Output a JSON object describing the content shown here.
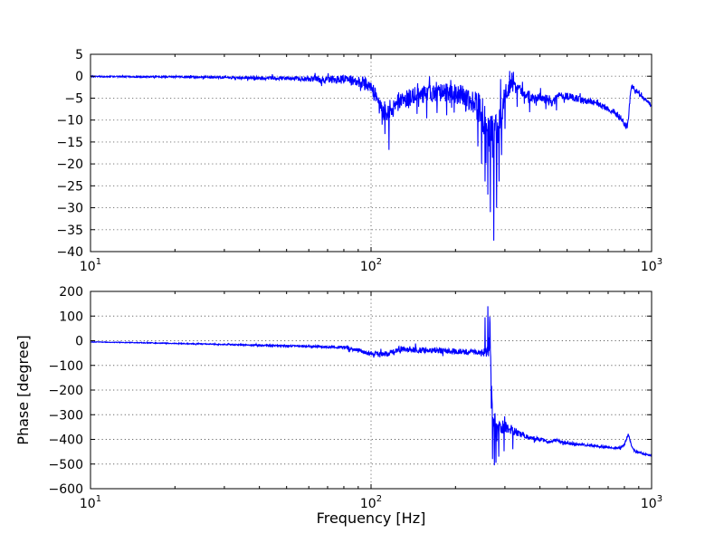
{
  "figure": {
    "background": "#ffffff",
    "accent_color": "#0000ff",
    "grid_color": "#4a4a4a"
  },
  "chart_data": [
    {
      "id": "magnitude",
      "type": "line",
      "title": "",
      "xlabel": "",
      "ylabel": "",
      "xscale": "log",
      "grid": true,
      "legend": null,
      "line_color": "#0000ff",
      "xlim": [
        10,
        1000
      ],
      "ylim": [
        -40,
        5
      ],
      "yticks": [
        5,
        0,
        -5,
        -10,
        -15,
        -20,
        -25,
        -30,
        -35,
        -40
      ],
      "xticks": [
        {
          "value": 10,
          "base": "10",
          "exp": "1"
        },
        {
          "value": 100,
          "base": "10",
          "exp": "2"
        },
        {
          "value": 1000,
          "base": "10",
          "exp": "3"
        }
      ],
      "anchors": [
        [
          10,
          -0.05
        ],
        [
          14,
          -0.1
        ],
        [
          20,
          -0.15
        ],
        [
          28,
          -0.25
        ],
        [
          40,
          -0.4
        ],
        [
          55,
          -0.55
        ],
        [
          70,
          -0.7
        ],
        [
          85,
          -0.95
        ],
        [
          95,
          -1.4
        ],
        [
          100,
          -2.3
        ],
        [
          104,
          -4.5
        ],
        [
          108,
          -7
        ],
        [
          113,
          -8
        ],
        [
          118,
          -7.4
        ],
        [
          126,
          -6
        ],
        [
          136,
          -4.8
        ],
        [
          150,
          -4.1
        ],
        [
          170,
          -3.7
        ],
        [
          190,
          -3.9
        ],
        [
          210,
          -4.5
        ],
        [
          228,
          -5.6
        ],
        [
          243,
          -7.5
        ],
        [
          252,
          -9.5
        ],
        [
          258,
          -10.5
        ],
        [
          266,
          -13
        ],
        [
          272,
          -14.5
        ],
        [
          280,
          -12.5
        ],
        [
          288,
          -9.5
        ],
        [
          296,
          -6
        ],
        [
          306,
          -3
        ],
        [
          314,
          -2.2
        ],
        [
          326,
          -2.5
        ],
        [
          342,
          -3.3
        ],
        [
          362,
          -4.3
        ],
        [
          385,
          -5
        ],
        [
          405,
          -4.9
        ],
        [
          425,
          -5.2
        ],
        [
          440,
          -6.2
        ],
        [
          455,
          -5.2
        ],
        [
          470,
          -4.4
        ],
        [
          495,
          -4.5
        ],
        [
          520,
          -4.9
        ],
        [
          555,
          -5.3
        ],
        [
          600,
          -5.8
        ],
        [
          640,
          -6.1
        ],
        [
          690,
          -7.3
        ],
        [
          730,
          -8
        ],
        [
          760,
          -9
        ],
        [
          785,
          -10
        ],
        [
          800,
          -10.8
        ],
        [
          812,
          -11.6
        ],
        [
          820,
          -11.3
        ],
        [
          830,
          -8.5
        ],
        [
          842,
          -3.5
        ],
        [
          852,
          -2.1
        ],
        [
          862,
          -2.7
        ],
        [
          880,
          -3.3
        ],
        [
          905,
          -4.1
        ],
        [
          950,
          -5.3
        ],
        [
          1000,
          -6.7
        ]
      ],
      "noise_envelope": [
        [
          10,
          0.12
        ],
        [
          30,
          0.25
        ],
        [
          50,
          0.45
        ],
        [
          70,
          0.8
        ],
        [
          90,
          1.3
        ],
        [
          100,
          1.8
        ],
        [
          112,
          2.4
        ],
        [
          130,
          2.0
        ],
        [
          160,
          2.2
        ],
        [
          200,
          2.3
        ],
        [
          235,
          3.0
        ],
        [
          255,
          4.5
        ],
        [
          272,
          5.5
        ],
        [
          285,
          4.0
        ],
        [
          300,
          2.5
        ],
        [
          315,
          1.6
        ],
        [
          350,
          1.2
        ],
        [
          400,
          1.0
        ],
        [
          460,
          1.0
        ],
        [
          520,
          0.85
        ],
        [
          600,
          0.7
        ],
        [
          700,
          0.6
        ],
        [
          760,
          0.8
        ],
        [
          800,
          0.7
        ],
        [
          840,
          0.6
        ],
        [
          900,
          0.45
        ],
        [
          1000,
          0.4
        ]
      ],
      "spikes": [
        [
          112,
          -13.2
        ],
        [
          116,
          -16.8
        ],
        [
          146,
          -8.6
        ],
        [
          158,
          -9.6
        ],
        [
          172,
          -8.4
        ],
        [
          186,
          -8.9
        ],
        [
          198,
          -8.3
        ],
        [
          240,
          -16
        ],
        [
          248,
          -20
        ],
        [
          255,
          -24
        ],
        [
          261,
          -27
        ],
        [
          266,
          -31
        ],
        [
          274,
          -37.5
        ],
        [
          280,
          -30
        ],
        [
          286,
          -24
        ],
        [
          292,
          -18
        ],
        [
          300,
          -12
        ],
        [
          312,
          1.2
        ],
        [
          318,
          0.8
        ],
        [
          322,
          1.0
        ],
        [
          332,
          -7
        ],
        [
          368,
          -8.2
        ],
        [
          420,
          -7.5
        ],
        [
          458,
          -7.8
        ]
      ]
    },
    {
      "id": "phase",
      "type": "line",
      "title": "",
      "xlabel": "Frequency [Hz]",
      "ylabel": "Phase [degree]",
      "xscale": "log",
      "grid": true,
      "legend": null,
      "line_color": "#0000ff",
      "xlim": [
        10,
        1000
      ],
      "ylim": [
        -600,
        200
      ],
      "yticks": [
        200,
        100,
        0,
        -100,
        -200,
        -300,
        -400,
        -500,
        -600
      ],
      "xticks": [
        {
          "value": 10,
          "base": "10",
          "exp": "1"
        },
        {
          "value": 100,
          "base": "10",
          "exp": "2"
        },
        {
          "value": 1000,
          "base": "10",
          "exp": "3"
        }
      ],
      "anchors": [
        [
          10,
          -5
        ],
        [
          15,
          -8
        ],
        [
          22,
          -12
        ],
        [
          30,
          -15
        ],
        [
          42,
          -19
        ],
        [
          55,
          -22
        ],
        [
          70,
          -25
        ],
        [
          80,
          -27
        ],
        [
          90,
          -38
        ],
        [
          97,
          -48
        ],
        [
          104,
          -54
        ],
        [
          110,
          -58
        ],
        [
          116,
          -50
        ],
        [
          124,
          -37
        ],
        [
          132,
          -33
        ],
        [
          142,
          -36
        ],
        [
          155,
          -39
        ],
        [
          175,
          -40
        ],
        [
          195,
          -42
        ],
        [
          215,
          -45
        ],
        [
          235,
          -48
        ],
        [
          250,
          -50
        ],
        [
          258,
          -48
        ],
        [
          262,
          -30
        ],
        [
          265,
          35
        ],
        [
          267,
          -40
        ],
        [
          269,
          -180
        ],
        [
          272,
          -300
        ],
        [
          277,
          -355
        ],
        [
          283,
          -370
        ],
        [
          290,
          -350
        ],
        [
          300,
          -350
        ],
        [
          310,
          -357
        ],
        [
          325,
          -367
        ],
        [
          345,
          -380
        ],
        [
          365,
          -390
        ],
        [
          385,
          -398
        ],
        [
          405,
          -403
        ],
        [
          428,
          -410
        ],
        [
          450,
          -404
        ],
        [
          465,
          -406
        ],
        [
          485,
          -412
        ],
        [
          520,
          -417
        ],
        [
          560,
          -421
        ],
        [
          600,
          -424
        ],
        [
          650,
          -429
        ],
        [
          700,
          -432
        ],
        [
          740,
          -435
        ],
        [
          775,
          -433
        ],
        [
          800,
          -420
        ],
        [
          815,
          -395
        ],
        [
          825,
          -379
        ],
        [
          835,
          -395
        ],
        [
          848,
          -425
        ],
        [
          862,
          -442
        ],
        [
          885,
          -450
        ],
        [
          930,
          -458
        ],
        [
          1000,
          -465
        ]
      ],
      "noise_envelope": [
        [
          10,
          1.2
        ],
        [
          30,
          2.2
        ],
        [
          50,
          3.5
        ],
        [
          70,
          5.0
        ],
        [
          90,
          8
        ],
        [
          105,
          11
        ],
        [
          125,
          13
        ],
        [
          150,
          12
        ],
        [
          185,
          11
        ],
        [
          220,
          11
        ],
        [
          245,
          13
        ],
        [
          258,
          22
        ],
        [
          265,
          70
        ],
        [
          272,
          75
        ],
        [
          280,
          45
        ],
        [
          292,
          30
        ],
        [
          310,
          22
        ],
        [
          335,
          14
        ],
        [
          370,
          10
        ],
        [
          420,
          8
        ],
        [
          480,
          6
        ],
        [
          550,
          5
        ],
        [
          650,
          4
        ],
        [
          760,
          4
        ],
        [
          820,
          6
        ],
        [
          900,
          3.5
        ],
        [
          1000,
          3
        ]
      ],
      "spikes": [
        [
          255,
          95
        ],
        [
          261,
          140
        ],
        [
          271,
          -480
        ],
        [
          275,
          -505
        ],
        [
          279,
          -495
        ],
        [
          285,
          -470
        ],
        [
          298,
          -448
        ],
        [
          320,
          -440
        ]
      ]
    }
  ]
}
